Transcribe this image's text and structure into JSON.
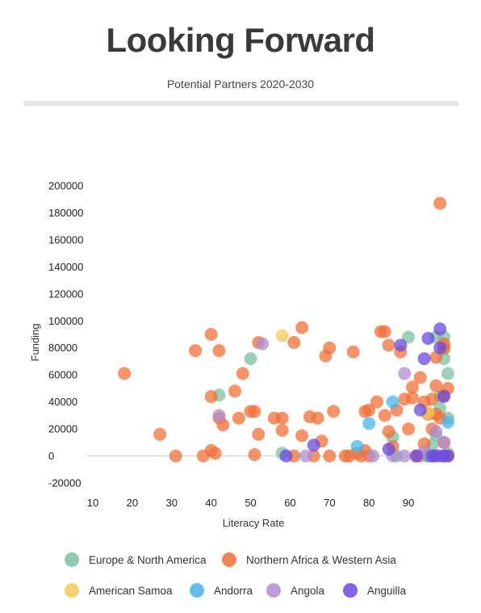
{
  "header": {
    "title": "Looking Forward",
    "subtitle": "Potential Partners 2020-2030"
  },
  "chart_data": {
    "type": "scatter",
    "xlabel": "Literacy Rate",
    "ylabel": "Funding",
    "xlim": [
      10,
      100
    ],
    "ylim": [
      -20000,
      200000
    ],
    "xticks": [
      10,
      20,
      30,
      40,
      50,
      60,
      70,
      80,
      90
    ],
    "yticks": [
      -20000,
      0,
      20000,
      40000,
      60000,
      80000,
      100000,
      120000,
      140000,
      160000,
      180000,
      200000
    ],
    "legend_position": "bottom",
    "grid": false,
    "series": [
      {
        "name": "Europe & North America",
        "color": "#7cc0a0",
        "points": [
          [
            42,
            45000
          ],
          [
            50,
            72000
          ],
          [
            58,
            2000
          ],
          [
            86,
            14000
          ],
          [
            87,
            0
          ],
          [
            90,
            88000
          ],
          [
            96,
            8000
          ],
          [
            97,
            15000
          ],
          [
            98,
            44000
          ],
          [
            99,
            72000
          ],
          [
            99,
            79000
          ],
          [
            99,
            88000
          ],
          [
            100,
            61000
          ],
          [
            100,
            28000
          ],
          [
            100,
            2000
          ],
          [
            98,
            35000
          ],
          [
            97,
            88000
          ]
        ]
      },
      {
        "name": "Northern Africa & Western Asia",
        "color": "#f0703a",
        "points": [
          [
            18,
            61000
          ],
          [
            27,
            16000
          ],
          [
            31,
            0
          ],
          [
            36,
            78000
          ],
          [
            38,
            0
          ],
          [
            40,
            90000
          ],
          [
            40,
            44000
          ],
          [
            40,
            4000
          ],
          [
            41,
            2000
          ],
          [
            42,
            28000
          ],
          [
            42,
            78000
          ],
          [
            43,
            23000
          ],
          [
            46,
            48000
          ],
          [
            47,
            28000
          ],
          [
            48,
            61000
          ],
          [
            50,
            33000
          ],
          [
            51,
            33000
          ],
          [
            51,
            1000
          ],
          [
            52,
            16000
          ],
          [
            52,
            84000
          ],
          [
            56,
            28000
          ],
          [
            58,
            28000
          ],
          [
            58,
            19000
          ],
          [
            61,
            84000
          ],
          [
            61,
            0
          ],
          [
            63,
            95000
          ],
          [
            63,
            15000
          ],
          [
            65,
            29000
          ],
          [
            66,
            0
          ],
          [
            67,
            28000
          ],
          [
            68,
            11000
          ],
          [
            69,
            74000
          ],
          [
            70,
            80000
          ],
          [
            70,
            0
          ],
          [
            71,
            33000
          ],
          [
            74,
            0
          ],
          [
            75,
            0
          ],
          [
            76,
            77000
          ],
          [
            77,
            2000
          ],
          [
            78,
            0
          ],
          [
            79,
            4000
          ],
          [
            79,
            33000
          ],
          [
            80,
            0
          ],
          [
            80,
            34000
          ],
          [
            82,
            40000
          ],
          [
            83,
            92000
          ],
          [
            84,
            92000
          ],
          [
            84,
            30000
          ],
          [
            85,
            18000
          ],
          [
            85,
            82000
          ],
          [
            86,
            7000
          ],
          [
            87,
            34000
          ],
          [
            88,
            77000
          ],
          [
            89,
            42000
          ],
          [
            90,
            20000
          ],
          [
            91,
            51000
          ],
          [
            91,
            43000
          ],
          [
            92,
            0
          ],
          [
            93,
            58000
          ],
          [
            93,
            0
          ],
          [
            94,
            40000
          ],
          [
            94,
            9000
          ],
          [
            95,
            0
          ],
          [
            95,
            31000
          ],
          [
            96,
            20000
          ],
          [
            96,
            42000
          ],
          [
            97,
            52000
          ],
          [
            97,
            73000
          ],
          [
            98,
            187000
          ],
          [
            98,
            0
          ],
          [
            98,
            28000
          ],
          [
            99,
            45000
          ],
          [
            99,
            83000
          ],
          [
            99,
            80000
          ],
          [
            99,
            10000
          ],
          [
            100,
            50000
          ],
          [
            100,
            0
          ],
          [
            97,
            31000
          ]
        ]
      },
      {
        "name": "American Samoa",
        "color": "#f5c85a",
        "points": [
          [
            58,
            89000
          ],
          [
            95,
            32000
          ]
        ]
      },
      {
        "name": "Andorra",
        "color": "#4ab4e6",
        "points": [
          [
            77,
            7000
          ],
          [
            80,
            24000
          ],
          [
            86,
            40000
          ],
          [
            100,
            25000
          ],
          [
            95,
            0
          ]
        ]
      },
      {
        "name": "Angola",
        "color": "#b08cd0",
        "points": [
          [
            42,
            30000
          ],
          [
            53,
            83000
          ],
          [
            64,
            0
          ],
          [
            81,
            0
          ],
          [
            89,
            61000
          ],
          [
            89,
            0
          ],
          [
            94,
            3000
          ],
          [
            96,
            0
          ],
          [
            97,
            18000
          ],
          [
            98,
            0
          ],
          [
            99,
            0
          ],
          [
            99,
            10000
          ],
          [
            86,
            0
          ]
        ]
      },
      {
        "name": "Anguilla",
        "color": "#6a4ae0",
        "points": [
          [
            59,
            0
          ],
          [
            66,
            8000
          ],
          [
            85,
            5000
          ],
          [
            88,
            82000
          ],
          [
            92,
            0
          ],
          [
            93,
            34000
          ],
          [
            94,
            72000
          ],
          [
            95,
            87000
          ],
          [
            96,
            0
          ],
          [
            97,
            0
          ],
          [
            98,
            94000
          ],
          [
            98,
            80000
          ],
          [
            99,
            0
          ],
          [
            100,
            0
          ],
          [
            99,
            44000
          ]
        ]
      }
    ]
  }
}
